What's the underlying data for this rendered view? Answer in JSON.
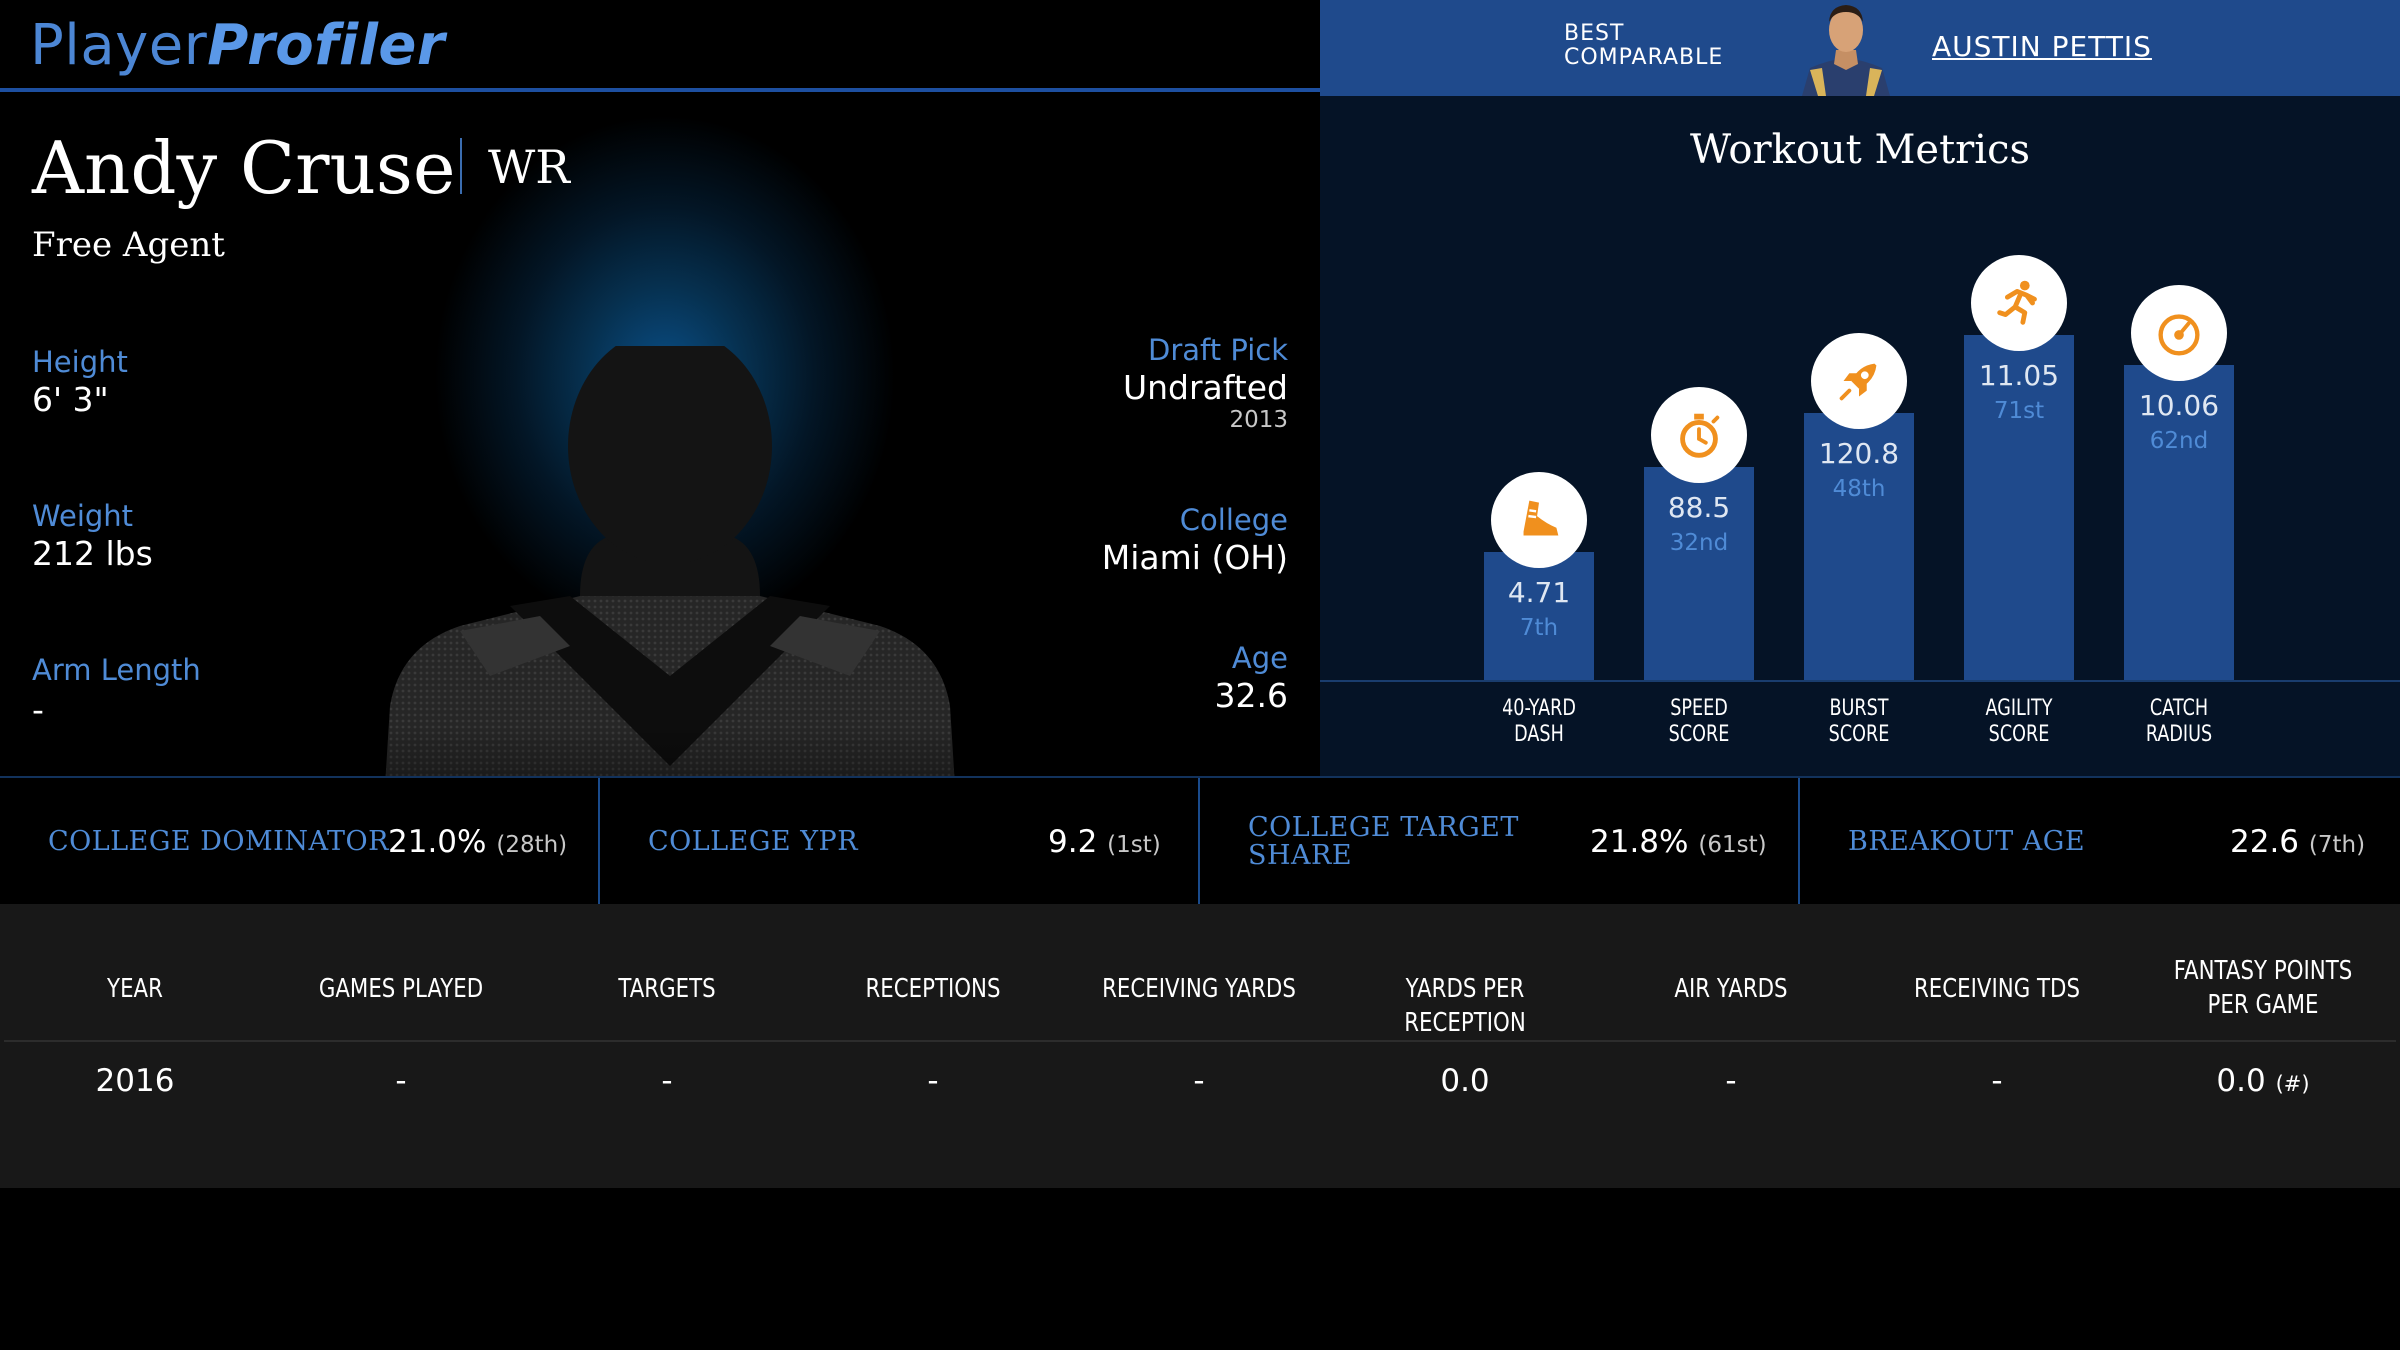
{
  "header": {
    "logo_part1": "Player",
    "logo_part2": "Profiler",
    "best_comparable_label": "BEST COMPARABLE",
    "best_comparable_name": "AUSTIN PETTIS"
  },
  "player": {
    "name": "Andy Cruse",
    "position": "WR",
    "team": "Free Agent",
    "height_label": "Height",
    "height": "6' 3\"",
    "weight_label": "Weight",
    "weight": "212 lbs",
    "arm_label": "Arm Length",
    "arm": "-",
    "draft_label": "Draft Pick",
    "draft": "Undrafted",
    "draft_year": "2013",
    "college_label": "College",
    "college": "Miami (OH)",
    "age_label": "Age",
    "age": "32.6"
  },
  "workout": {
    "title": "Workout Metrics",
    "metrics": [
      {
        "label_1": "40-YARD",
        "label_2": "DASH",
        "value": "4.71",
        "rank": "7th",
        "percentile": 7,
        "icon": "shoe-icon"
      },
      {
        "label_1": "SPEED",
        "label_2": "SCORE",
        "value": "88.5",
        "rank": "32nd",
        "percentile": 32,
        "icon": "stopwatch-icon"
      },
      {
        "label_1": "BURST",
        "label_2": "SCORE",
        "value": "120.8",
        "rank": "48th",
        "percentile": 48,
        "icon": "rocket-icon"
      },
      {
        "label_1": "AGILITY",
        "label_2": "SCORE",
        "value": "11.05",
        "rank": "71st",
        "percentile": 71,
        "icon": "runner-icon"
      },
      {
        "label_1": "CATCH",
        "label_2": "RADIUS",
        "value": "10.06",
        "rank": "62nd",
        "percentile": 62,
        "icon": "gauge-icon"
      }
    ]
  },
  "college_stats": [
    {
      "label": "COLLEGE DOMINATOR",
      "value": "21.0%",
      "rank": "(28th)"
    },
    {
      "label": "COLLEGE YPR",
      "value": "9.2",
      "rank": "(1st)"
    },
    {
      "label_1": "COLLEGE TARGET",
      "label_2": "SHARE",
      "value": "21.8%",
      "rank": "(61st)"
    },
    {
      "label": "BREAKOUT AGE",
      "value": "22.6",
      "rank": "(7th)"
    }
  ],
  "season_table": {
    "headers": [
      "YEAR",
      "GAMES PLAYED",
      "TARGETS",
      "RECEPTIONS",
      "RECEIVING YARDS",
      "YARDS PER RECEPTION",
      "AIR YARDS",
      "RECEIVING TDS",
      "FANTASY POINTS PER GAME"
    ],
    "rows": [
      {
        "year": "2016",
        "games": "-",
        "targets": "-",
        "receptions": "-",
        "rec_yards": "-",
        "ypr": "0.0",
        "air_yards": "-",
        "rec_tds": "-",
        "fppg": "0.0",
        "fppg_rank": "(#)"
      }
    ]
  },
  "colors": {
    "accent_blue": "#4f8bd6",
    "bar_blue": "#1f4a8c",
    "icon_orange": "#f0901e",
    "panel_dark": "#051326",
    "table_bg": "#181818"
  }
}
